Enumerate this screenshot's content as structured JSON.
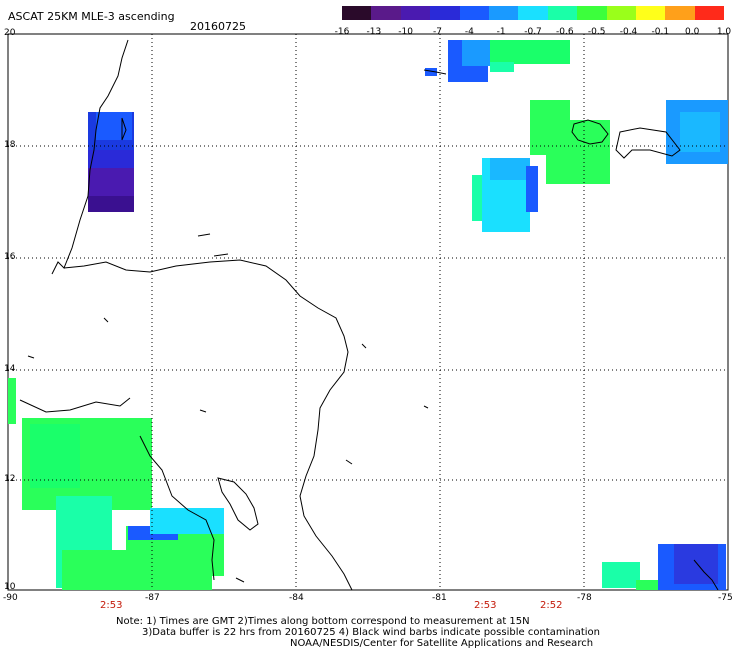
{
  "header": {
    "product": "ASCAT 25KM MLE-3 ascending",
    "date": "20160725"
  },
  "colorbar": {
    "tick_labels": [
      "-16",
      "-13",
      "-10",
      "-7",
      "-4",
      "-1",
      "-0.7",
      "-0.6",
      "-0.5",
      "-0.4",
      "-0.1",
      "0.0",
      "1.0"
    ],
    "colors": [
      "#2a0a2a",
      "#5a1a8a",
      "#4a1ab0",
      "#2a2ad8",
      "#1a5aff",
      "#1a9aff",
      "#1ae0ff",
      "#1affa8",
      "#3cff3c",
      "#9aff1a",
      "#ffff1a",
      "#ffa01a",
      "#ff2a1a"
    ]
  },
  "axes": {
    "y_labels": [
      "20",
      "18",
      "16",
      "14",
      "12",
      "10"
    ],
    "x_labels": [
      "-90",
      "-87",
      "-84",
      "-81",
      "-78",
      "-75"
    ]
  },
  "times": [
    "2:53",
    "2:53",
    "2:52"
  ],
  "notes": {
    "line1": "Note:  1) Times are GMT  2)Times along bottom correspond to measurement at 15N",
    "line2": "3)Data buffer is 22 hrs from 20160725  4) Black wind barbs indicate possible contamination",
    "line3": "NOAA/NESDIS/Center for Satellite Applications and Research"
  }
}
